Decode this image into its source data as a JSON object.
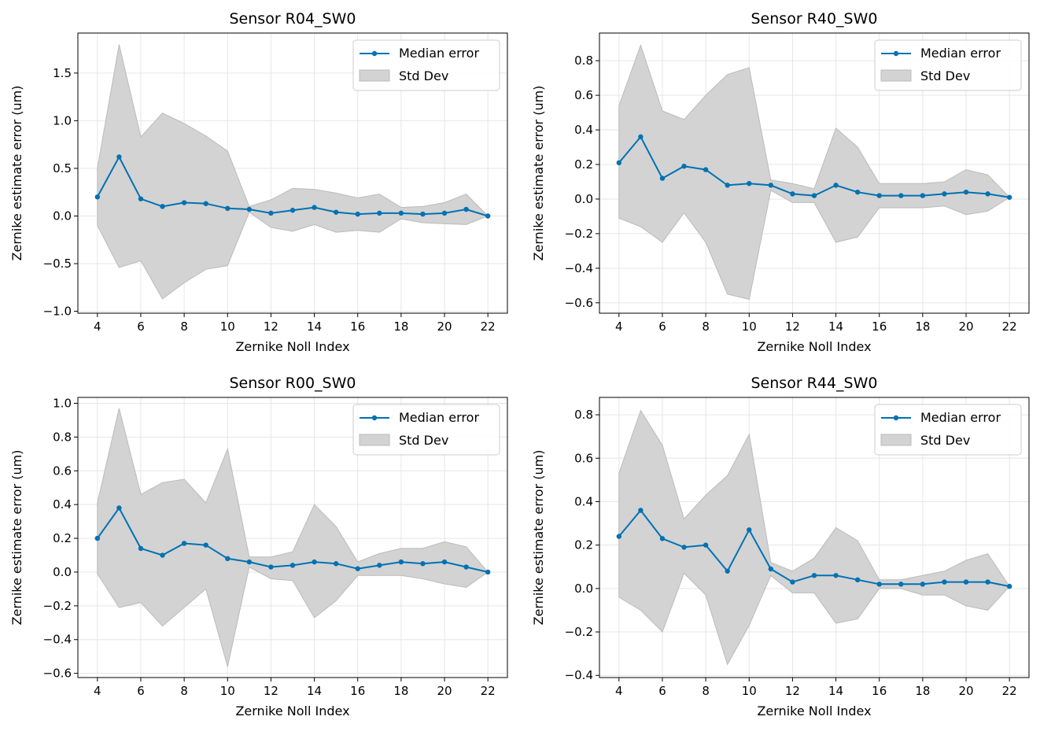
{
  "chart_data": [
    {
      "type": "line",
      "title": "Sensor R04_SW0",
      "xlabel": "Zernike Noll Index",
      "ylabel": "Zernike estimate error (um)",
      "xlim": [
        3.1,
        22.9
      ],
      "ylim": [
        -1.02,
        1.92
      ],
      "xticks": [
        4,
        6,
        8,
        10,
        12,
        14,
        16,
        18,
        20,
        22
      ],
      "xtick_labels": [
        "4",
        "6",
        "8",
        "10",
        "12",
        "14",
        "16",
        "18",
        "20",
        "22"
      ],
      "yticks": [
        -1.0,
        -0.5,
        0.0,
        0.5,
        1.0,
        1.5
      ],
      "ytick_labels": [
        "−1.0",
        "−0.5",
        "0.0",
        "0.5",
        "1.0",
        "1.5"
      ],
      "grid": true,
      "legend": {
        "position": "top-right",
        "entries": [
          "Median error",
          "Std Dev"
        ]
      },
      "x": [
        4,
        5,
        6,
        7,
        8,
        9,
        10,
        11,
        12,
        13,
        14,
        15,
        16,
        17,
        18,
        19,
        20,
        21,
        22
      ],
      "series": [
        {
          "name": "Median error",
          "values": [
            0.2,
            0.62,
            0.18,
            0.1,
            0.14,
            0.13,
            0.08,
            0.07,
            0.03,
            0.06,
            0.09,
            0.04,
            0.02,
            0.03,
            0.03,
            0.02,
            0.03,
            0.07,
            0.0
          ]
        },
        {
          "name": "Std Dev",
          "upper": [
            0.5,
            1.8,
            0.83,
            1.08,
            0.97,
            0.84,
            0.68,
            0.1,
            0.17,
            0.29,
            0.28,
            0.24,
            0.19,
            0.23,
            0.09,
            0.1,
            0.14,
            0.23,
            0.0
          ],
          "lower": [
            -0.1,
            -0.54,
            -0.47,
            -0.87,
            -0.7,
            -0.56,
            -0.52,
            0.04,
            -0.12,
            -0.16,
            -0.09,
            -0.17,
            -0.15,
            -0.17,
            -0.03,
            -0.07,
            -0.08,
            -0.09,
            0.0
          ]
        }
      ]
    },
    {
      "type": "line",
      "title": "Sensor R40_SW0",
      "xlabel": "Zernike Noll Index",
      "ylabel": "Zernike estimate error (um)",
      "xlim": [
        3.1,
        22.9
      ],
      "ylim": [
        -0.66,
        0.96
      ],
      "xticks": [
        4,
        6,
        8,
        10,
        12,
        14,
        16,
        18,
        20,
        22
      ],
      "xtick_labels": [
        "4",
        "6",
        "8",
        "10",
        "12",
        "14",
        "16",
        "18",
        "20",
        "22"
      ],
      "yticks": [
        -0.6,
        -0.4,
        -0.2,
        0.0,
        0.2,
        0.4,
        0.6,
        0.8
      ],
      "ytick_labels": [
        "−0.6",
        "−0.4",
        "−0.2",
        "0.0",
        "0.2",
        "0.4",
        "0.6",
        "0.8"
      ],
      "grid": true,
      "legend": {
        "position": "top-right",
        "entries": [
          "Median error",
          "Std Dev"
        ]
      },
      "x": [
        4,
        5,
        6,
        7,
        8,
        9,
        10,
        11,
        12,
        13,
        14,
        15,
        16,
        17,
        18,
        19,
        20,
        21,
        22
      ],
      "series": [
        {
          "name": "Median error",
          "values": [
            0.21,
            0.36,
            0.12,
            0.19,
            0.17,
            0.08,
            0.09,
            0.08,
            0.03,
            0.02,
            0.08,
            0.04,
            0.02,
            0.02,
            0.02,
            0.03,
            0.04,
            0.03,
            0.01
          ]
        },
        {
          "name": "Std Dev",
          "upper": [
            0.54,
            0.89,
            0.51,
            0.46,
            0.6,
            0.72,
            0.76,
            0.11,
            0.09,
            0.06,
            0.41,
            0.3,
            0.09,
            0.09,
            0.09,
            0.1,
            0.17,
            0.14,
            0.01
          ],
          "lower": [
            -0.11,
            -0.16,
            -0.25,
            -0.08,
            -0.25,
            -0.55,
            -0.58,
            0.05,
            -0.02,
            -0.02,
            -0.25,
            -0.22,
            -0.05,
            -0.05,
            -0.05,
            -0.04,
            -0.09,
            -0.07,
            0.01
          ]
        }
      ]
    },
    {
      "type": "line",
      "title": "Sensor R00_SW0",
      "xlabel": "Zernike Noll Index",
      "ylabel": "Zernike estimate error (um)",
      "xlim": [
        3.1,
        22.9
      ],
      "ylim": [
        -0.625,
        1.035
      ],
      "xticks": [
        4,
        6,
        8,
        10,
        12,
        14,
        16,
        18,
        20,
        22
      ],
      "xtick_labels": [
        "4",
        "6",
        "8",
        "10",
        "12",
        "14",
        "16",
        "18",
        "20",
        "22"
      ],
      "yticks": [
        -0.6,
        -0.4,
        -0.2,
        0.0,
        0.2,
        0.4,
        0.6,
        0.8,
        1.0
      ],
      "ytick_labels": [
        "−0.6",
        "−0.4",
        "−0.2",
        "0.0",
        "0.2",
        "0.4",
        "0.6",
        "0.8",
        "1.0"
      ],
      "grid": true,
      "legend": {
        "position": "top-right",
        "entries": [
          "Median error",
          "Std Dev"
        ]
      },
      "x": [
        4,
        5,
        6,
        7,
        8,
        9,
        10,
        11,
        12,
        13,
        14,
        15,
        16,
        17,
        18,
        19,
        20,
        21,
        22
      ],
      "series": [
        {
          "name": "Median error",
          "values": [
            0.2,
            0.38,
            0.14,
            0.1,
            0.17,
            0.16,
            0.08,
            0.06,
            0.03,
            0.04,
            0.06,
            0.05,
            0.02,
            0.04,
            0.06,
            0.05,
            0.06,
            0.03,
            0.0
          ]
        },
        {
          "name": "Std Dev",
          "upper": [
            0.41,
            0.97,
            0.46,
            0.53,
            0.55,
            0.41,
            0.73,
            0.09,
            0.09,
            0.12,
            0.4,
            0.27,
            0.06,
            0.11,
            0.14,
            0.14,
            0.18,
            0.15,
            0.0
          ],
          "lower": [
            -0.01,
            -0.21,
            -0.18,
            -0.32,
            -0.21,
            -0.1,
            -0.56,
            0.03,
            -0.04,
            -0.05,
            -0.27,
            -0.17,
            -0.02,
            -0.02,
            -0.02,
            -0.04,
            -0.07,
            -0.09,
            0.0
          ]
        }
      ]
    },
    {
      "type": "line",
      "title": "Sensor R44_SW0",
      "xlabel": "Zernike Noll Index",
      "ylabel": "Zernike estimate error (um)",
      "xlim": [
        3.1,
        22.9
      ],
      "ylim": [
        -0.41,
        0.88
      ],
      "xticks": [
        4,
        6,
        8,
        10,
        12,
        14,
        16,
        18,
        20,
        22
      ],
      "xtick_labels": [
        "4",
        "6",
        "8",
        "10",
        "12",
        "14",
        "16",
        "18",
        "20",
        "22"
      ],
      "yticks": [
        -0.4,
        -0.2,
        0.0,
        0.2,
        0.4,
        0.6,
        0.8
      ],
      "ytick_labels": [
        "−0.4",
        "−0.2",
        "0.0",
        "0.2",
        "0.4",
        "0.6",
        "0.8"
      ],
      "grid": true,
      "legend": {
        "position": "top-right",
        "entries": [
          "Median error",
          "Std Dev"
        ]
      },
      "x": [
        4,
        5,
        6,
        7,
        8,
        9,
        10,
        11,
        12,
        13,
        14,
        15,
        16,
        17,
        18,
        19,
        20,
        21,
        22
      ],
      "series": [
        {
          "name": "Median error",
          "values": [
            0.24,
            0.36,
            0.23,
            0.19,
            0.2,
            0.08,
            0.27,
            0.09,
            0.03,
            0.06,
            0.06,
            0.04,
            0.02,
            0.02,
            0.02,
            0.03,
            0.03,
            0.03,
            0.01
          ]
        },
        {
          "name": "Std Dev",
          "upper": [
            0.53,
            0.82,
            0.66,
            0.32,
            0.43,
            0.52,
            0.71,
            0.12,
            0.08,
            0.14,
            0.28,
            0.22,
            0.04,
            0.04,
            0.06,
            0.08,
            0.13,
            0.16,
            0.01
          ],
          "lower": [
            -0.04,
            -0.1,
            -0.2,
            0.07,
            -0.03,
            -0.35,
            -0.17,
            0.06,
            -0.02,
            -0.02,
            -0.16,
            -0.14,
            0.0,
            0.0,
            -0.03,
            -0.03,
            -0.08,
            -0.1,
            0.01
          ]
        }
      ]
    }
  ],
  "colors": {
    "line": "#0072b2",
    "band": "#d3d3d3",
    "band_edge": "#bbbbbb",
    "grid": "#e6e6e6",
    "axes": "#000000",
    "legend_border": "#cccccc"
  }
}
